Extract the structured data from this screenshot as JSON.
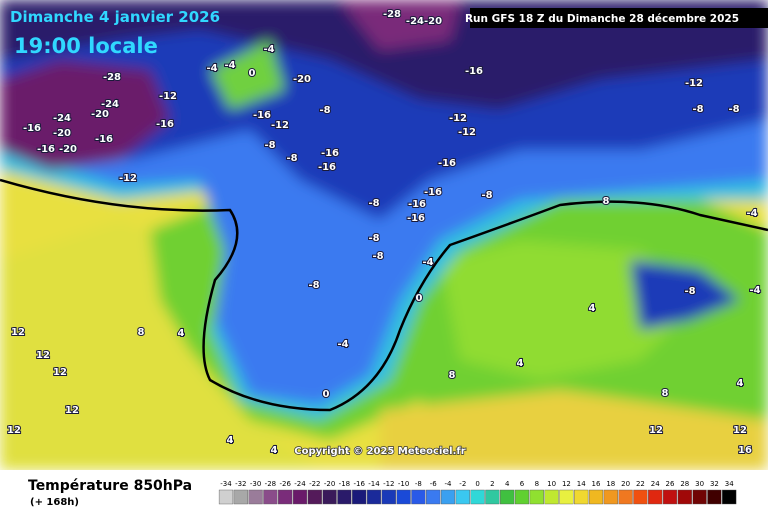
{
  "header": {
    "date": "Dimanche 4 janvier 2026",
    "time": "19:00 locale",
    "run": "Run GFS 18 Z du Dimanche 28 décembre 2025"
  },
  "copyright": "Copyright © 2025 Meteociel.fr",
  "footer": {
    "title": "Température 850hPa",
    "lead": "(+ 168h)"
  },
  "map_labels": [
    "-28",
    "-24",
    "-20",
    "-24",
    "-16",
    "-20",
    "-16",
    "-20",
    "-16",
    "-12",
    "-12",
    "-16",
    "-4",
    "-4",
    "0",
    "-4",
    "-20",
    "-16",
    "-12",
    "-8",
    "-8",
    "-16",
    "-16",
    "-8",
    "-28",
    "-24-20",
    "-16",
    "-12",
    "-12",
    "-16",
    "-16",
    "-16",
    "-16",
    "-8",
    "-8",
    "-8",
    "-8",
    "-8",
    "-4",
    "0",
    "-4",
    "0",
    "4",
    "8",
    "12",
    "12",
    "12",
    "12",
    "12",
    "4",
    "4",
    "8",
    "4",
    "4",
    "8",
    "12",
    "12",
    "16",
    "4",
    "-8",
    "-8",
    "-12",
    "-4",
    "8",
    "-8",
    "-4"
  ],
  "legend": {
    "ticks": [
      -34,
      -32,
      -30,
      -28,
      -26,
      -24,
      -22,
      -20,
      -18,
      -16,
      -14,
      -12,
      -10,
      -8,
      -6,
      -4,
      -2,
      0,
      2,
      4,
      6,
      8,
      10,
      12,
      14,
      16,
      18,
      20,
      22,
      24,
      26,
      28,
      30,
      32,
      34
    ],
    "colors": [
      "#d0d0d0",
      "#a8a8a8",
      "#9a7c9a",
      "#8a4c8a",
      "#7a2c7a",
      "#6a1a6a",
      "#541a5a",
      "#3a1a5a",
      "#2a1a6a",
      "#1a1a7a",
      "#1a2a9a",
      "#1a3ab8",
      "#1a4ad8",
      "#2a5ae8",
      "#3a7af0",
      "#3aa0f0",
      "#3ac8f0",
      "#30d8d8",
      "#30c8a0",
      "#40c040",
      "#60d030",
      "#90e030",
      "#c0e830",
      "#e8f040",
      "#f0d830",
      "#f0b820",
      "#f09820",
      "#f07820",
      "#f05010",
      "#e02810",
      "#c01010",
      "#a00808",
      "#700404",
      "#400000",
      "#000000"
    ]
  }
}
